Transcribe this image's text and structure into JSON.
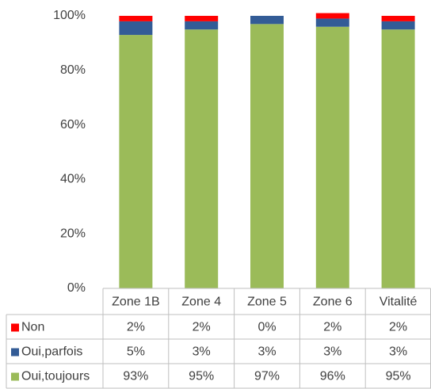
{
  "chart_data": {
    "type": "bar",
    "stacked": true,
    "categories": [
      "Zone 1B",
      "Zone 4",
      "Zone 5",
      "Zone 6",
      "Vitalité"
    ],
    "series": [
      {
        "name": "Non",
        "color": "#ff0000",
        "values": [
          2,
          2,
          0,
          2,
          2
        ],
        "value_labels": [
          "2%",
          "2%",
          "0%",
          "2%",
          "2%"
        ]
      },
      {
        "name": "Oui,parfois",
        "color": "#335c96",
        "values": [
          5,
          3,
          3,
          3,
          3
        ],
        "value_labels": [
          "5%",
          "3%",
          "3%",
          "3%",
          "3%"
        ]
      },
      {
        "name": "Oui,toujours",
        "color": "#9bbb59",
        "values": [
          93,
          95,
          97,
          96,
          95
        ],
        "value_labels": [
          "93%",
          "95%",
          "97%",
          "96%",
          "95%"
        ]
      }
    ],
    "ylim": [
      0,
      100
    ],
    "yticks": [
      {
        "value": 0,
        "label": "0%"
      },
      {
        "value": 20,
        "label": "20%"
      },
      {
        "value": 40,
        "label": "40%"
      },
      {
        "value": 60,
        "label": "60%"
      },
      {
        "value": 80,
        "label": "80%"
      },
      {
        "value": 100,
        "label": "100%"
      }
    ],
    "grid": false
  }
}
